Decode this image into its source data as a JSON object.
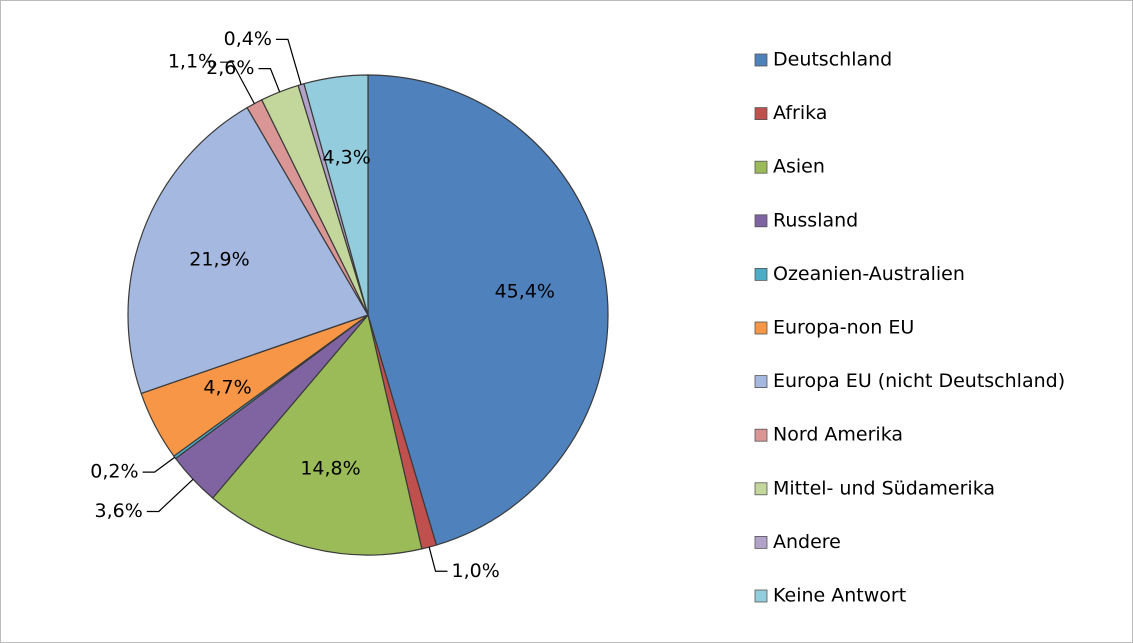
{
  "chart_data": {
    "type": "pie",
    "categories": [
      "Deutschland",
      "Afrika",
      "Asien",
      "Russland",
      "Ozeanien-Australien",
      "Europa-non EU",
      "Europa EU (nicht Deutschland)",
      "Nord Amerika",
      "Mittel- und Südamerika",
      "Andere",
      "Keine Antwort"
    ],
    "values": [
      45.4,
      1.0,
      14.8,
      3.6,
      0.2,
      4.7,
      21.9,
      1.1,
      2.6,
      0.4,
      4.3
    ],
    "value_labels": [
      "45,4%",
      "1,0%",
      "14,8%",
      "3,6%",
      "0,2%",
      "4,7%",
      "21,9%",
      "1,1%",
      "2,6%",
      "0,4%",
      "4,3%"
    ],
    "colors": [
      "#4f81bd",
      "#c0504d",
      "#9bbb59",
      "#8064a2",
      "#4bacc6",
      "#f79646",
      "#a5b8e0",
      "#d99694",
      "#c3d69b",
      "#b3a2c7",
      "#93cddd"
    ],
    "legend": "right"
  }
}
